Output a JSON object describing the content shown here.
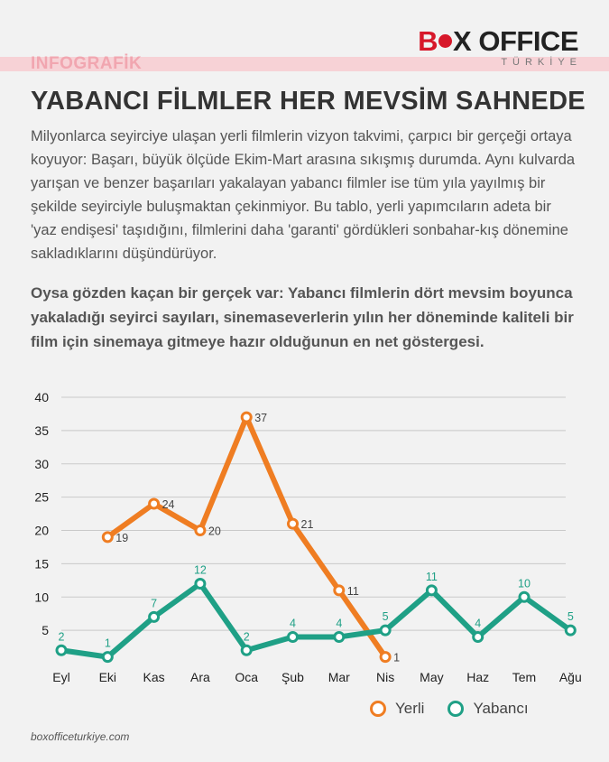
{
  "header": {
    "section_label": "INFOGRAFİK",
    "logo": {
      "part1": "B",
      "part2": "X OFFICE",
      "sub": "TÜRKİYE"
    }
  },
  "title": "YABANCI FİLMLER HER MEVSİM SAHNEDE",
  "intro": "Milyonlarca seyirciye ulaşan yerli filmlerin vizyon takvimi, çarpıcı bir gerçeği ortaya koyuyor: Başarı, büyük ölçüde Ekim-Mart arasına sıkışmış durumda. Aynı kulvarda yarışan ve benzer başarıları yakalayan yabancı filmler ise tüm yıla yayılmış bir şekilde seyirciyle buluşmaktan çekinmiyor. Bu tablo, yerli yapımcıların adeta bir 'yaz endişesi' taşıdığını, filmlerini daha 'garanti' gördükleri sonbahar-kış dönemine sakladıklarını düşündürüyor.",
  "highlight": "Oysa gözden kaçan bir gerçek var: Yabancı filmlerin dört mevsim boyunca yakaladığı seyirci sayıları, sinemaseverlerin yılın her döneminde kaliteli bir film için sinemaya gitmeye hazır olduğunun en net göstergesi.",
  "colors": {
    "yerli": "#ef7d22",
    "yabanci": "#1fa086",
    "grid": "#c9c9c9",
    "axis_text": "#222222",
    "label_text": "#444444"
  },
  "chart_data": {
    "type": "line",
    "categories": [
      "Eyl",
      "Eki",
      "Kas",
      "Ara",
      "Oca",
      "Şub",
      "Mar",
      "Nis",
      "May",
      "Haz",
      "Tem",
      "Ağu"
    ],
    "y_ticks": [
      5,
      10,
      15,
      20,
      25,
      30,
      35,
      40
    ],
    "ylim": [
      0,
      40
    ],
    "grid": true,
    "legend": "bottom-right",
    "series": [
      {
        "name": "Yerli",
        "color_key": "yerli",
        "values": [
          null,
          19,
          24,
          20,
          37,
          21,
          11,
          1,
          null,
          null,
          null,
          null
        ]
      },
      {
        "name": "Yabancı",
        "color_key": "yabanci",
        "values": [
          2,
          1,
          7,
          12,
          2,
          4,
          4,
          5,
          11,
          4,
          10,
          5
        ]
      }
    ]
  },
  "source": "boxofficeturkiye.com"
}
